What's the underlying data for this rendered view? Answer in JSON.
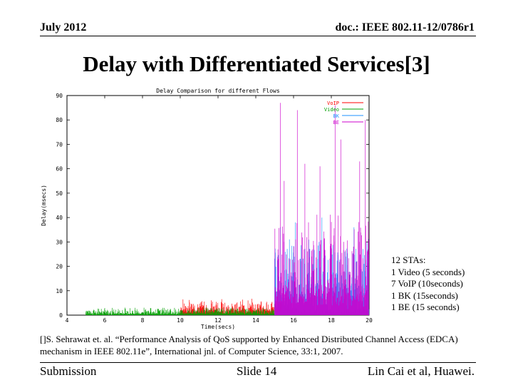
{
  "header": {
    "date": "July 2012",
    "doc": "doc.: IEEE 802.11-12/0786r1"
  },
  "slide": {
    "title": "Delay with Differentiated Services[3]"
  },
  "chart_data": {
    "type": "line",
    "title": "Delay Comparison for different Flows",
    "xlabel": "Time(secs)",
    "ylabel": "Delay(msecs)",
    "xlim": [
      4,
      20
    ],
    "ylim": [
      0,
      90
    ],
    "x_ticks": [
      "4",
      "6",
      "8",
      "10",
      "12",
      "14",
      "16",
      "18",
      "20"
    ],
    "y_ticks": [
      "0",
      "10",
      "20",
      "30",
      "40",
      "50",
      "60",
      "70",
      "80",
      "90"
    ],
    "legend_position": "top-right",
    "series": [
      {
        "name": "VoIP",
        "color": "#ff0000",
        "active": [
          10,
          16
        ],
        "base": 2.5,
        "spread": 4.5,
        "spikes": []
      },
      {
        "name": "Video",
        "color": "#00a000",
        "active": [
          5,
          20
        ],
        "base": 0.8,
        "spread": 2.5,
        "spikes": []
      },
      {
        "name": "BK",
        "color": "#1e90ff",
        "active": [
          15,
          20
        ],
        "base": 8,
        "spread": 26,
        "spikes": [
          [
            15.3,
            36
          ],
          [
            16.1,
            38
          ],
          [
            17.5,
            40
          ],
          [
            19.2,
            36
          ]
        ]
      },
      {
        "name": "BE",
        "color": "#cc00cc",
        "active": [
          15,
          20
        ],
        "base": 10,
        "spread": 34,
        "spikes": [
          [
            15.3,
            87
          ],
          [
            15.5,
            55
          ],
          [
            16.2,
            84
          ],
          [
            16.6,
            62
          ],
          [
            17.4,
            61
          ],
          [
            18.2,
            86
          ],
          [
            18.5,
            72
          ],
          [
            19.5,
            63
          ],
          [
            19.8,
            80
          ]
        ]
      }
    ]
  },
  "notes": {
    "lines": [
      "12 STAs:",
      "1 Video (5 seconds)",
      "7 VoIP (10seconds)",
      "1 BK (15seconds)",
      "1 BE (15 seconds)"
    ]
  },
  "citation": {
    "line1": "[]S. Sehrawat et. al. “Performance Analysis of QoS supported by Enhanced Distributed Channel Access (EDCA)",
    "line2": "mechanism in IEEE 802.11e”, International jnl. of Computer Science, 33:1, 2007."
  },
  "footer": {
    "left": "Submission",
    "center": "Slide 14",
    "right": "Lin Cai et al, Huawei."
  }
}
